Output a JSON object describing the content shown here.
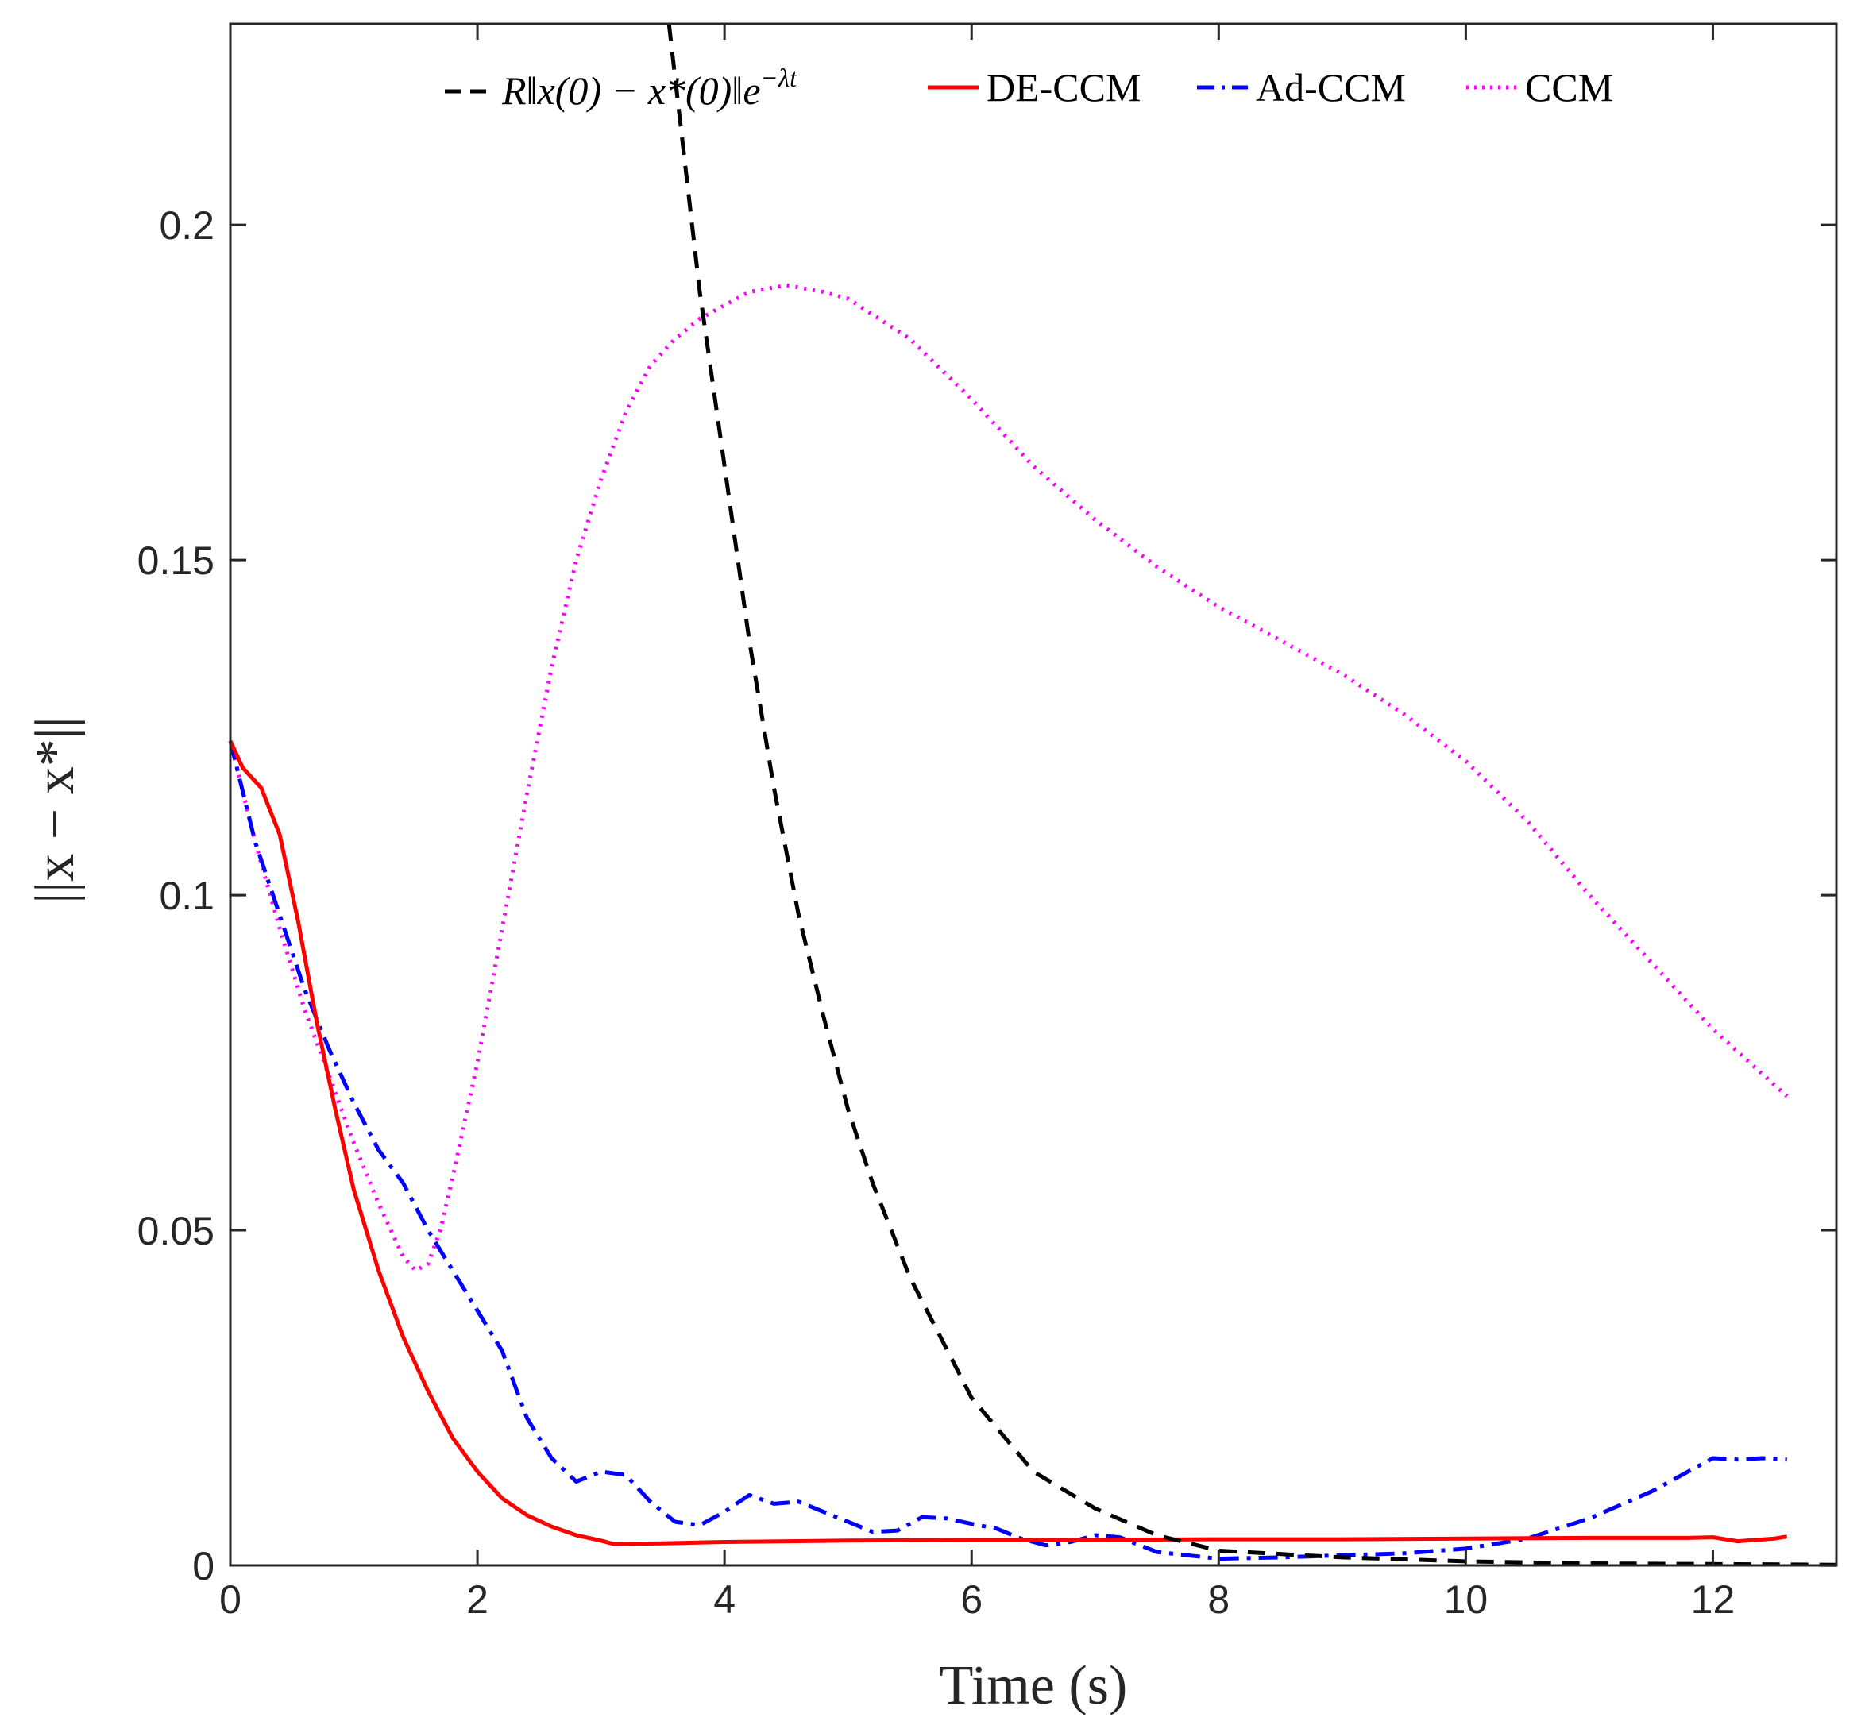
{
  "colors": {
    "bound": "#000000",
    "de_ccm": "#ff0000",
    "ad_ccm": "#0000ff",
    "ccm": "#ff00ff",
    "axis": "#262626"
  },
  "chart_data": {
    "type": "line",
    "title": "",
    "xlabel": "Time (s)",
    "ylabel": "||x − x*||",
    "xlim": [
      0,
      13
    ],
    "ylim": [
      0,
      0.23
    ],
    "xticks": [
      0,
      2,
      4,
      6,
      8,
      10,
      12
    ],
    "yticks": [
      0,
      0.05,
      0.1,
      0.15,
      0.2
    ],
    "xtick_labels": [
      "0",
      "2",
      "4",
      "6",
      "8",
      "10",
      "12"
    ],
    "ytick_labels": [
      "0",
      "0.05",
      "0.1",
      "0.15",
      "0.2"
    ],
    "legend_position": "top",
    "grid": false,
    "series": [
      {
        "name": "R||x(0) − x*(0)||e^{−λt}",
        "legend_label": "R‖x(0) − x*(0)‖e",
        "legend_sup": "−λt",
        "style": "dashed",
        "color_key": "bound",
        "x": [
          3.55,
          3.6,
          3.7,
          3.8,
          3.9,
          4.0,
          4.2,
          4.4,
          4.6,
          4.8,
          5.0,
          5.2,
          5.5,
          6.0,
          6.5,
          7.0,
          7.5,
          8.0,
          9.0,
          10.0,
          11.0,
          12.0,
          13.0
        ],
        "y": [
          0.23,
          0.222,
          0.206,
          0.19,
          0.177,
          0.164,
          0.138,
          0.116,
          0.097,
          0.082,
          0.068,
          0.057,
          0.043,
          0.025,
          0.014,
          0.0085,
          0.0045,
          0.0022,
          0.0012,
          0.0006,
          0.0003,
          0.0002,
          0.0001
        ]
      },
      {
        "name": "DE-CCM",
        "legend_label": "DE-CCM",
        "style": "solid",
        "color_key": "de_ccm",
        "x": [
          0,
          0.1,
          0.25,
          0.4,
          0.55,
          0.7,
          0.85,
          1.0,
          1.2,
          1.4,
          1.6,
          1.8,
          2.0,
          2.2,
          2.4,
          2.6,
          2.8,
          3.0,
          3.1,
          3.5,
          4.0,
          5.0,
          6.0,
          7.0,
          8.0,
          9.0,
          10.0,
          11.0,
          11.8,
          12.0,
          12.2,
          12.5,
          12.6
        ],
        "y": [
          0.123,
          0.119,
          0.116,
          0.109,
          0.096,
          0.081,
          0.068,
          0.056,
          0.044,
          0.034,
          0.026,
          0.019,
          0.014,
          0.01,
          0.0075,
          0.0058,
          0.0045,
          0.0037,
          0.0032,
          0.0033,
          0.0035,
          0.0037,
          0.0038,
          0.0038,
          0.0039,
          0.0039,
          0.004,
          0.0041,
          0.0041,
          0.0042,
          0.0036,
          0.004,
          0.0043
        ]
      },
      {
        "name": "Ad-CCM",
        "legend_label": "Ad-CCM",
        "style": "dashdot",
        "color_key": "ad_ccm",
        "x": [
          0,
          0.2,
          0.4,
          0.6,
          0.8,
          1.0,
          1.2,
          1.4,
          1.6,
          1.8,
          2.0,
          2.2,
          2.4,
          2.6,
          2.8,
          3.0,
          3.2,
          3.4,
          3.6,
          3.8,
          4.0,
          4.2,
          4.4,
          4.6,
          4.8,
          5.0,
          5.2,
          5.4,
          5.6,
          5.8,
          6.0,
          6.2,
          6.4,
          6.6,
          6.8,
          7.0,
          7.2,
          7.5,
          8.0,
          8.5,
          9.0,
          9.5,
          10.0,
          10.5,
          11.0,
          11.5,
          12.0,
          12.2,
          12.4,
          12.6
        ],
        "y": [
          0.123,
          0.108,
          0.097,
          0.086,
          0.077,
          0.069,
          0.062,
          0.057,
          0.05,
          0.044,
          0.038,
          0.032,
          0.022,
          0.016,
          0.0125,
          0.014,
          0.0135,
          0.0095,
          0.0065,
          0.006,
          0.008,
          0.0105,
          0.0092,
          0.0095,
          0.008,
          0.0065,
          0.005,
          0.0052,
          0.0072,
          0.007,
          0.0062,
          0.0055,
          0.004,
          0.003,
          0.0035,
          0.0045,
          0.0042,
          0.002,
          0.001,
          0.0012,
          0.0015,
          0.0018,
          0.0025,
          0.004,
          0.007,
          0.011,
          0.016,
          0.0158,
          0.016,
          0.0158
        ]
      },
      {
        "name": "CCM",
        "legend_label": "CCM",
        "style": "dotted",
        "color_key": "ccm",
        "x": [
          0,
          0.2,
          0.4,
          0.6,
          0.8,
          1.0,
          1.2,
          1.4,
          1.5,
          1.6,
          1.7,
          1.8,
          2.0,
          2.2,
          2.4,
          2.6,
          2.8,
          3.0,
          3.2,
          3.4,
          3.6,
          3.8,
          4.0,
          4.2,
          4.5,
          4.8,
          5.0,
          5.5,
          6.0,
          6.5,
          7.0,
          7.5,
          8.0,
          8.5,
          9.0,
          9.5,
          10.0,
          10.5,
          11.0,
          11.5,
          12.0,
          12.3,
          12.6
        ],
        "y": [
          0.123,
          0.108,
          0.095,
          0.083,
          0.073,
          0.063,
          0.054,
          0.046,
          0.044,
          0.045,
          0.05,
          0.058,
          0.075,
          0.095,
          0.115,
          0.134,
          0.15,
          0.162,
          0.172,
          0.179,
          0.183,
          0.186,
          0.188,
          0.19,
          0.191,
          0.19,
          0.189,
          0.183,
          0.174,
          0.164,
          0.156,
          0.149,
          0.143,
          0.138,
          0.133,
          0.127,
          0.12,
          0.111,
          0.1,
          0.09,
          0.08,
          0.075,
          0.07
        ]
      }
    ]
  }
}
